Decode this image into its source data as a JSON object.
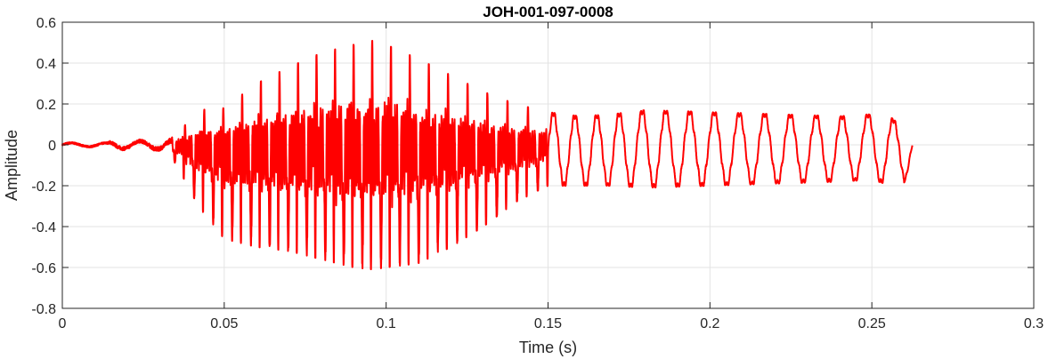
{
  "chart_data": {
    "type": "line",
    "title": "JOH-001-097-0008",
    "xlabel": "Time (s)",
    "ylabel": "Amplitude",
    "xlim": [
      0,
      0.3
    ],
    "ylim": [
      -0.8,
      0.6
    ],
    "xticks": [
      0,
      0.05,
      0.1,
      0.15,
      0.2,
      0.25,
      0.3
    ],
    "xtick_labels": [
      "0",
      "0.05",
      "0.1",
      "0.15",
      "0.2",
      "0.25",
      "0.3"
    ],
    "yticks": [
      -0.8,
      -0.6,
      -0.4,
      -0.2,
      0,
      0.2,
      0.4,
      0.6
    ],
    "ytick_labels": [
      "-0.8",
      "-0.6",
      "-0.4",
      "-0.2",
      "0",
      "0.2",
      "0.4",
      "0.6"
    ],
    "grid": true,
    "series": [
      {
        "color": "#ff0000",
        "envelope": {
          "t": [
            0,
            0.014,
            0.015,
            0.025,
            0.033,
            0.037,
            0.042,
            0.05,
            0.06,
            0.07,
            0.08,
            0.09,
            0.096,
            0.1,
            0.11,
            0.12,
            0.13,
            0.14,
            0.15,
            0.16,
            0.17,
            0.18,
            0.2,
            0.22,
            0.24,
            0.25,
            0.254,
            0.26,
            0.2625
          ],
          "max": [
            0.015,
            0.015,
            0.03,
            0.03,
            0.04,
            0.08,
            0.17,
            0.18,
            0.3,
            0.38,
            0.45,
            0.49,
            0.51,
            0.49,
            0.42,
            0.34,
            0.26,
            0.2,
            0.16,
            0.14,
            0.15,
            0.17,
            0.16,
            0.15,
            0.14,
            0.15,
            0.16,
            0.08,
            0.04
          ],
          "min": [
            -0.015,
            -0.015,
            -0.03,
            -0.03,
            -0.04,
            -0.15,
            -0.3,
            -0.46,
            -0.5,
            -0.52,
            -0.56,
            -0.6,
            -0.61,
            -0.6,
            -0.58,
            -0.5,
            -0.4,
            -0.28,
            -0.2,
            -0.2,
            -0.2,
            -0.21,
            -0.2,
            -0.19,
            -0.18,
            -0.17,
            -0.19,
            -0.19,
            -0.04
          ]
        },
        "t_end": 0.2625
      }
    ]
  }
}
